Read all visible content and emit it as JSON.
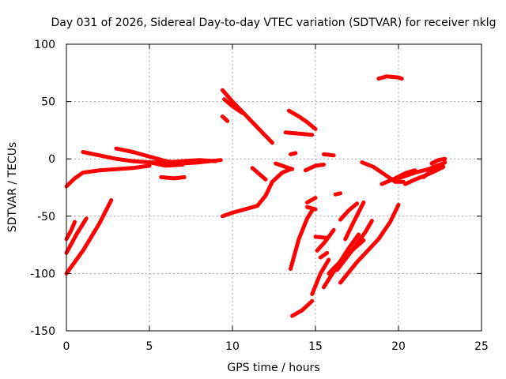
{
  "chart_data": {
    "type": "scatter",
    "title": "Day 031 of 2026, Sidereal Day-to-day VTEC variation (SDTVAR) for receiver nklg",
    "xlabel": "GPS time / hours",
    "ylabel": "SDTVAR / TECUs",
    "xlim": [
      0,
      25
    ],
    "ylim": [
      -150,
      100
    ],
    "xticks": [
      0,
      5,
      10,
      15,
      20,
      25
    ],
    "yticks": [
      -150,
      -100,
      -50,
      0,
      50,
      100
    ],
    "grid": true,
    "color": "#ff0000",
    "series": [
      {
        "name": "arc-01",
        "points": [
          [
            0,
            -24
          ],
          [
            0.5,
            -17
          ],
          [
            1,
            -12
          ],
          [
            2,
            -10
          ],
          [
            3,
            -9
          ],
          [
            4,
            -8
          ],
          [
            5,
            -6
          ]
        ]
      },
      {
        "name": "arc-02",
        "points": [
          [
            1,
            6
          ],
          [
            2,
            3
          ],
          [
            3,
            0
          ],
          [
            4,
            -2
          ],
          [
            5,
            -3
          ],
          [
            6,
            -3
          ],
          [
            7,
            -2
          ],
          [
            8,
            -1
          ],
          [
            9,
            -2
          ]
        ]
      },
      {
        "name": "arc-03",
        "points": [
          [
            3,
            9
          ],
          [
            4,
            6
          ],
          [
            5,
            2
          ],
          [
            6,
            -2
          ],
          [
            7,
            -4
          ],
          [
            8,
            -3
          ],
          [
            9.3,
            -1
          ]
        ]
      },
      {
        "name": "arc-04",
        "points": [
          [
            5,
            -3
          ],
          [
            6,
            -6
          ],
          [
            7,
            -5
          ]
        ]
      },
      {
        "name": "arc-05",
        "points": [
          [
            5.7,
            -16
          ],
          [
            6.5,
            -17
          ],
          [
            7.1,
            -16
          ]
        ]
      },
      {
        "name": "arc-06",
        "points": [
          [
            0,
            -100
          ],
          [
            1,
            -80
          ],
          [
            2,
            -56
          ],
          [
            2.7,
            -36
          ]
        ]
      },
      {
        "name": "arc-07",
        "points": [
          [
            0,
            -82
          ],
          [
            0.6,
            -66
          ],
          [
            1.2,
            -52
          ]
        ]
      },
      {
        "name": "arc-08",
        "points": [
          [
            0,
            -70
          ],
          [
            0.3,
            -62
          ],
          [
            0.5,
            -55
          ]
        ]
      },
      {
        "name": "arc-09",
        "points": [
          [
            9.4,
            60
          ],
          [
            10,
            50
          ],
          [
            11,
            35
          ],
          [
            12,
            20
          ],
          [
            12.4,
            14
          ]
        ]
      },
      {
        "name": "arc-10",
        "points": [
          [
            9.4,
            37
          ],
          [
            9.7,
            33
          ]
        ]
      },
      {
        "name": "arc-11",
        "points": [
          [
            9.5,
            52
          ],
          [
            10,
            46
          ],
          [
            10.6,
            40
          ]
        ]
      },
      {
        "name": "arc-12",
        "points": [
          [
            9.4,
            -50
          ],
          [
            10,
            -47
          ],
          [
            11,
            -43
          ],
          [
            11.5,
            -41
          ],
          [
            12,
            -32
          ],
          [
            12.4,
            -20
          ],
          [
            13,
            -12
          ],
          [
            13.5,
            -9
          ]
        ]
      },
      {
        "name": "arc-13",
        "points": [
          [
            11.2,
            -8
          ],
          [
            11.6,
            -13
          ],
          [
            12,
            -18
          ]
        ]
      },
      {
        "name": "arc-14",
        "points": [
          [
            12.6,
            -4
          ],
          [
            13.2,
            -7
          ],
          [
            13.6,
            -9
          ]
        ]
      },
      {
        "name": "arc-15",
        "points": [
          [
            13.4,
            42
          ],
          [
            14,
            37
          ],
          [
            14.5,
            32
          ],
          [
            15,
            26
          ]
        ]
      },
      {
        "name": "arc-16",
        "points": [
          [
            13.2,
            23
          ],
          [
            14,
            22
          ],
          [
            14.8,
            21
          ]
        ]
      },
      {
        "name": "arc-17",
        "points": [
          [
            13.5,
            4
          ],
          [
            13.8,
            5
          ]
        ]
      },
      {
        "name": "arc-18",
        "points": [
          [
            14.4,
            -10
          ],
          [
            15,
            -6
          ],
          [
            15.5,
            -5
          ]
        ]
      },
      {
        "name": "arc-19",
        "points": [
          [
            15.5,
            4
          ],
          [
            16.1,
            3
          ]
        ]
      },
      {
        "name": "arc-20",
        "points": [
          [
            14.5,
            -38
          ],
          [
            15,
            -34
          ]
        ]
      },
      {
        "name": "arc-21",
        "points": [
          [
            14.5,
            -42
          ],
          [
            15,
            -44
          ]
        ]
      },
      {
        "name": "arc-22",
        "points": [
          [
            16.2,
            -31
          ],
          [
            16.5,
            -30
          ]
        ]
      },
      {
        "name": "arc-23",
        "points": [
          [
            13.6,
            -137
          ],
          [
            14.2,
            -132
          ],
          [
            14.8,
            -124
          ]
        ]
      },
      {
        "name": "arc-24",
        "points": [
          [
            13.5,
            -96
          ],
          [
            14,
            -70
          ],
          [
            14.5,
            -52
          ],
          [
            14.8,
            -45
          ]
        ]
      },
      {
        "name": "arc-25",
        "points": [
          [
            14.8,
            -118
          ],
          [
            15.3,
            -100
          ],
          [
            15.8,
            -88
          ]
        ]
      },
      {
        "name": "arc-26",
        "points": [
          [
            15,
            -68
          ],
          [
            15.7,
            -69
          ]
        ]
      },
      {
        "name": "arc-27",
        "points": [
          [
            15.3,
            -86
          ],
          [
            15.7,
            -82
          ]
        ]
      },
      {
        "name": "arc-28",
        "points": [
          [
            15.8,
            -100
          ],
          [
            16.8,
            -85
          ],
          [
            17.9,
            -71
          ]
        ]
      },
      {
        "name": "arc-29",
        "points": [
          [
            15.5,
            -112
          ],
          [
            16.2,
            -96
          ],
          [
            17,
            -78
          ],
          [
            17.6,
            -66
          ]
        ]
      },
      {
        "name": "arc-30",
        "points": [
          [
            16.3,
            -97
          ],
          [
            17.2,
            -80
          ],
          [
            18,
            -64
          ],
          [
            18.4,
            -54
          ]
        ]
      },
      {
        "name": "arc-31",
        "points": [
          [
            16.5,
            -108
          ],
          [
            17.5,
            -90
          ],
          [
            18.8,
            -70
          ],
          [
            19.5,
            -55
          ],
          [
            20,
            -40
          ]
        ]
      },
      {
        "name": "arc-32",
        "points": [
          [
            16.8,
            -70
          ],
          [
            17.3,
            -55
          ],
          [
            17.9,
            -38
          ]
        ]
      },
      {
        "name": "arc-33",
        "points": [
          [
            16.5,
            -53
          ],
          [
            17,
            -45
          ],
          [
            17.5,
            -39
          ]
        ]
      },
      {
        "name": "arc-34",
        "points": [
          [
            15.1,
            -80
          ],
          [
            15.6,
            -72
          ],
          [
            16.1,
            -62
          ]
        ]
      },
      {
        "name": "arc-35",
        "points": [
          [
            18.8,
            70
          ],
          [
            19.3,
            72
          ],
          [
            20,
            71
          ],
          [
            20.2,
            70
          ]
        ]
      },
      {
        "name": "arc-36",
        "points": [
          [
            17.8,
            -3
          ],
          [
            18.5,
            -7
          ],
          [
            19.2,
            -14
          ],
          [
            19.8,
            -20
          ],
          [
            20.3,
            -20
          ]
        ]
      },
      {
        "name": "arc-37",
        "points": [
          [
            19,
            -22
          ],
          [
            19.8,
            -17
          ],
          [
            20.5,
            -12
          ],
          [
            21,
            -10
          ]
        ]
      },
      {
        "name": "arc-38",
        "points": [
          [
            20,
            -17
          ],
          [
            20.6,
            -14
          ],
          [
            21,
            -12
          ],
          [
            21.8,
            -9
          ],
          [
            22.3,
            -6
          ],
          [
            22.7,
            -4
          ]
        ]
      },
      {
        "name": "arc-39",
        "points": [
          [
            20.4,
            -22
          ],
          [
            21,
            -18
          ],
          [
            21.7,
            -14
          ],
          [
            22.3,
            -10
          ],
          [
            22.7,
            -7
          ]
        ]
      },
      {
        "name": "arc-40",
        "points": [
          [
            21.5,
            -16
          ],
          [
            22,
            -10
          ],
          [
            22.5,
            -6
          ],
          [
            22.8,
            -3
          ]
        ]
      },
      {
        "name": "arc-41",
        "points": [
          [
            22,
            -4
          ],
          [
            22.4,
            -1
          ],
          [
            22.8,
            0
          ]
        ]
      }
    ]
  }
}
